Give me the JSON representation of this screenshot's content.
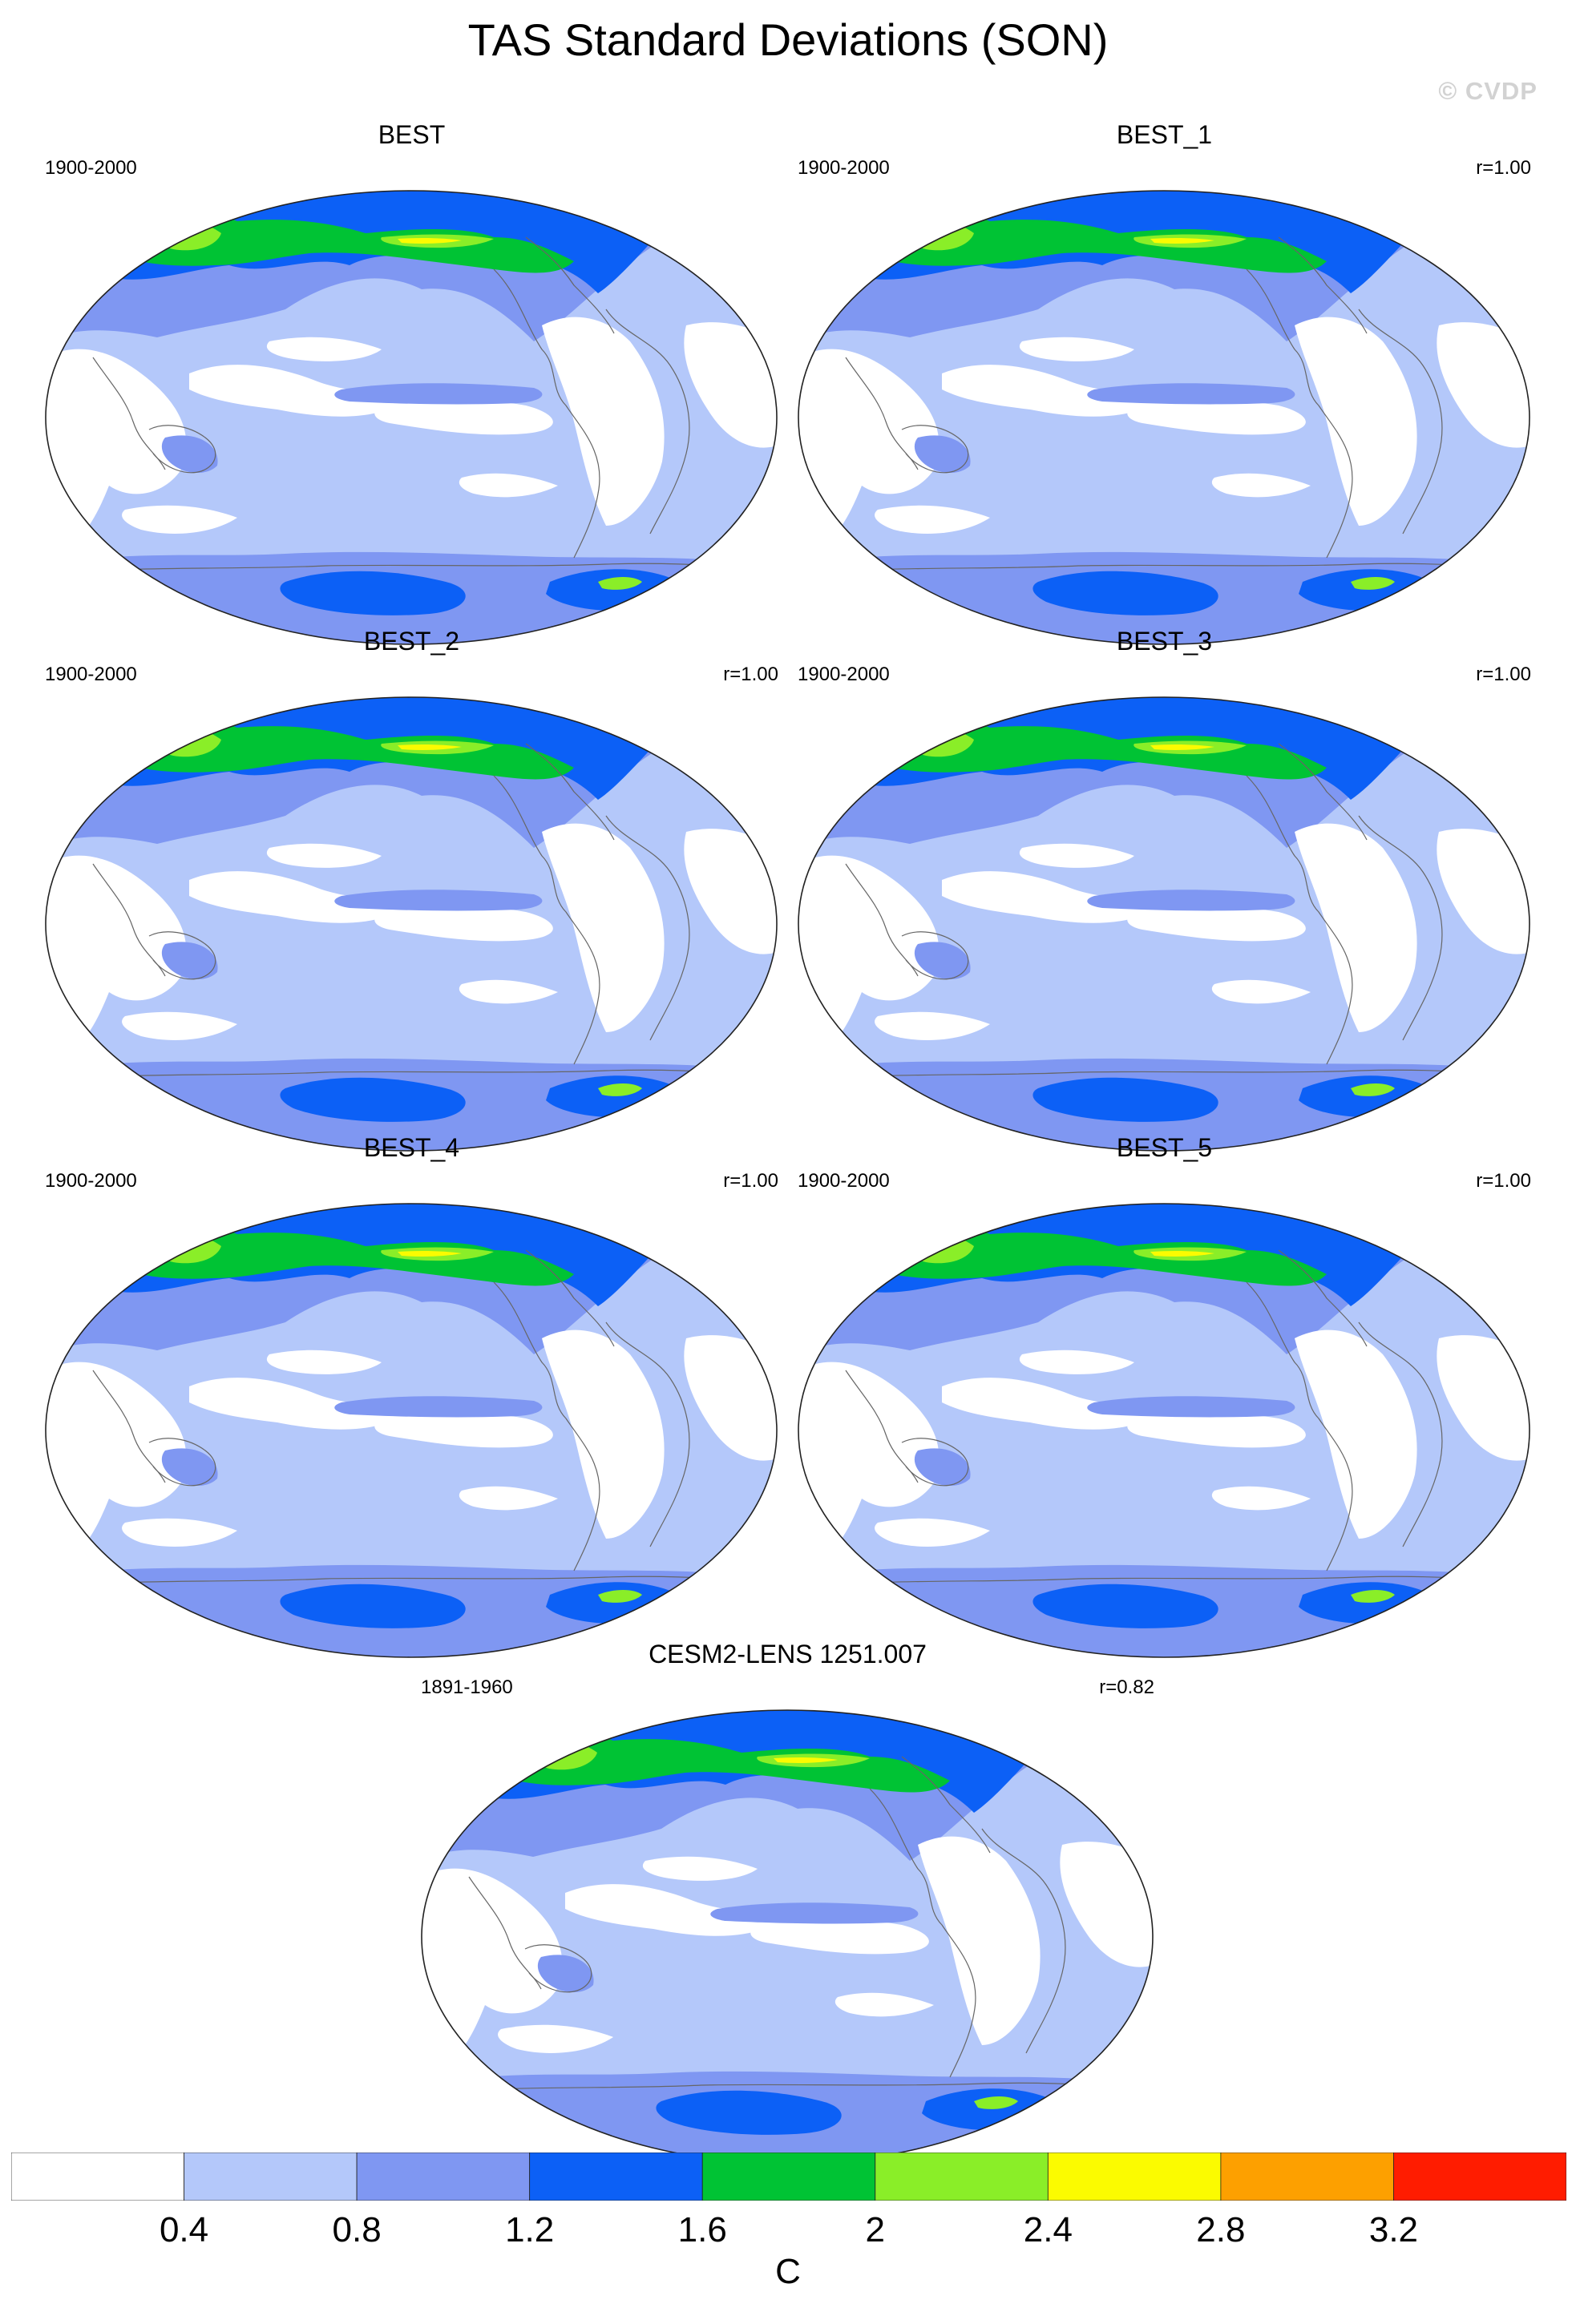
{
  "figure": {
    "title": "TAS Standard Deviations (SON)",
    "watermark": "© CVDP"
  },
  "colors": {
    "levels": [
      "#ffffff",
      "#b4c8fa",
      "#7f97f2",
      "#0c60f6",
      "#00c334",
      "#8aee28",
      "#fbfb00",
      "#fda000",
      "#ff1c00"
    ],
    "coastline": "#666666",
    "map_border": "#222222"
  },
  "panels": [
    {
      "title": "BEST",
      "period": "1900-2000",
      "correlation": ""
    },
    {
      "title": "BEST_1",
      "period": "1900-2000",
      "correlation": "r=1.00"
    },
    {
      "title": "BEST_2",
      "period": "1900-2000",
      "correlation": "r=1.00"
    },
    {
      "title": "BEST_3",
      "period": "1900-2000",
      "correlation": "r=1.00"
    },
    {
      "title": "BEST_4",
      "period": "1900-2000",
      "correlation": "r=1.00"
    },
    {
      "title": "BEST_5",
      "period": "1900-2000",
      "correlation": "r=1.00"
    },
    {
      "title": "CESM2-LENS 1251.007",
      "period": "1891-1960",
      "correlation": "r=0.82"
    }
  ],
  "colorbar": {
    "unit": "C",
    "ticks": [
      "0.4",
      "0.8",
      "1.2",
      "1.6",
      "2",
      "2.4",
      "2.8",
      "3.2"
    ],
    "boundaries": [
      0.4,
      0.8,
      1.2,
      1.6,
      2.0,
      2.4,
      2.8,
      3.2
    ]
  }
}
